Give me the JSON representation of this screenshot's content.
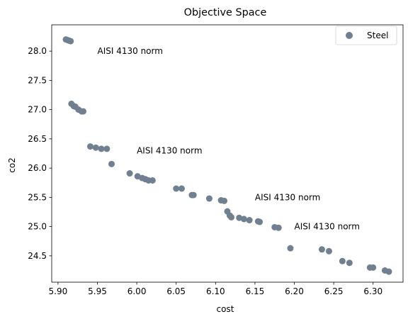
{
  "chart_data": {
    "type": "scatter",
    "title": "Objective Space",
    "xlabel": "cost",
    "ylabel": "co2",
    "xlim": [
      5.892,
      6.338
    ],
    "ylim": [
      24.05,
      28.45
    ],
    "xticks": [
      5.9,
      5.95,
      6.0,
      6.05,
      6.1,
      6.15,
      6.2,
      6.25,
      6.3
    ],
    "xtick_labels": [
      "5.90",
      "5.95",
      "6.00",
      "6.05",
      "6.10",
      "6.15",
      "6.20",
      "6.25",
      "6.30"
    ],
    "yticks": [
      24.5,
      25.0,
      25.5,
      26.0,
      26.5,
      27.0,
      27.5,
      28.0
    ],
    "ytick_labels": [
      "24.5",
      "25.0",
      "25.5",
      "26.0",
      "26.5",
      "27.0",
      "27.5",
      "28.0"
    ],
    "grid": false,
    "legend_position": "top-right",
    "series": [
      {
        "name": "Steel",
        "color": "#708090",
        "points": [
          [
            5.91,
            28.2
          ],
          [
            5.912,
            28.19
          ],
          [
            5.914,
            28.18
          ],
          [
            5.916,
            28.17
          ],
          [
            5.917,
            27.1
          ],
          [
            5.92,
            27.06
          ],
          [
            5.922,
            27.05
          ],
          [
            5.926,
            27.0
          ],
          [
            5.93,
            26.97
          ],
          [
            5.932,
            26.97
          ],
          [
            5.941,
            26.37
          ],
          [
            5.948,
            26.35
          ],
          [
            5.955,
            26.33
          ],
          [
            5.962,
            26.33
          ],
          [
            5.968,
            26.07
          ],
          [
            5.991,
            25.91
          ],
          [
            6.001,
            25.86
          ],
          [
            6.007,
            25.83
          ],
          [
            6.011,
            25.81
          ],
          [
            6.015,
            25.79
          ],
          [
            6.02,
            25.79
          ],
          [
            6.05,
            25.65
          ],
          [
            6.057,
            25.65
          ],
          [
            6.07,
            25.54
          ],
          [
            6.072,
            25.54
          ],
          [
            6.092,
            25.48
          ],
          [
            6.107,
            25.45
          ],
          [
            6.111,
            25.44
          ],
          [
            6.115,
            25.26
          ],
          [
            6.118,
            25.19
          ],
          [
            6.12,
            25.16
          ],
          [
            6.13,
            25.15
          ],
          [
            6.136,
            25.13
          ],
          [
            6.143,
            25.11
          ],
          [
            6.154,
            25.09
          ],
          [
            6.156,
            25.08
          ],
          [
            6.175,
            24.99
          ],
          [
            6.18,
            24.98
          ],
          [
            6.195,
            24.63
          ],
          [
            6.235,
            24.61
          ],
          [
            6.244,
            24.58
          ],
          [
            6.261,
            24.41
          ],
          [
            6.27,
            24.38
          ],
          [
            6.296,
            24.3
          ],
          [
            6.3,
            24.3
          ],
          [
            6.315,
            24.25
          ],
          [
            6.32,
            24.23
          ]
        ]
      }
    ],
    "annotations": [
      {
        "text": "AISI 4130 norm",
        "x": 5.95,
        "y": 28.0
      },
      {
        "text": "AISI 4130 norm",
        "x": 6.0,
        "y": 26.3
      },
      {
        "text": "AISI 4130 norm",
        "x": 6.15,
        "y": 25.5
      },
      {
        "text": "AISI 4130 norm",
        "x": 6.2,
        "y": 25.0
      }
    ]
  }
}
